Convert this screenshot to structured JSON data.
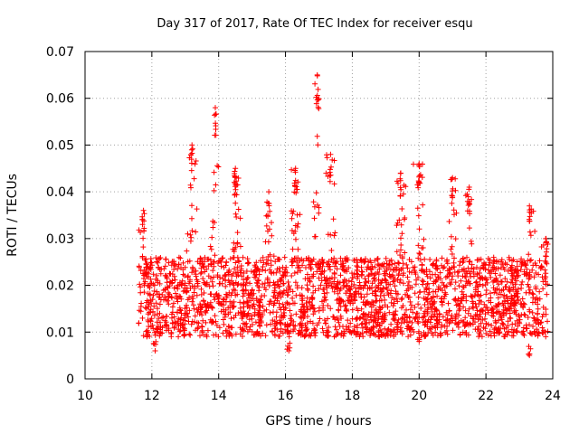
{
  "chart_data": {
    "type": "scatter",
    "title": "Day 317 of 2017, Rate Of TEC Index for receiver esqu",
    "xlabel": "GPS time / hours",
    "ylabel": "ROTI / TECUs",
    "xlim": [
      10,
      24
    ],
    "ylim": [
      0,
      0.07
    ],
    "x_ticks": [
      10,
      12,
      14,
      16,
      18,
      20,
      22,
      24
    ],
    "x_tick_labels": [
      "10",
      "12",
      "14",
      "16",
      "18",
      "20",
      "22",
      "24"
    ],
    "y_ticks": [
      0,
      0.01,
      0.02,
      0.03,
      0.04,
      0.05,
      0.06,
      0.07
    ],
    "y_tick_labels": [
      "0",
      "0.01",
      "0.02",
      "0.03",
      "0.04",
      "0.05",
      "0.06",
      "0.07"
    ],
    "grid": true,
    "marker": "+",
    "series": [
      {
        "name": "ROTI",
        "color": "#ff0000",
        "x_range": [
          11.6,
          23.85
        ],
        "baseline_range": [
          0.009,
          0.026
        ],
        "peaks": [
          {
            "x": 11.75,
            "y": 0.036
          },
          {
            "x": 13.2,
            "y": 0.05
          },
          {
            "x": 13.9,
            "y": 0.058
          },
          {
            "x": 14.5,
            "y": 0.045
          },
          {
            "x": 15.5,
            "y": 0.04
          },
          {
            "x": 16.3,
            "y": 0.045
          },
          {
            "x": 16.95,
            "y": 0.065
          },
          {
            "x": 17.35,
            "y": 0.048
          },
          {
            "x": 19.45,
            "y": 0.044
          },
          {
            "x": 20.0,
            "y": 0.046
          },
          {
            "x": 21.0,
            "y": 0.043
          },
          {
            "x": 21.5,
            "y": 0.041
          },
          {
            "x": 23.3,
            "y": 0.037
          },
          {
            "x": 23.8,
            "y": 0.03
          }
        ],
        "lows": [
          {
            "x": 12.1,
            "y": 0.006
          },
          {
            "x": 16.1,
            "y": 0.006
          },
          {
            "x": 20.0,
            "y": 0.008
          },
          {
            "x": 23.3,
            "y": 0.005
          }
        ]
      }
    ]
  }
}
